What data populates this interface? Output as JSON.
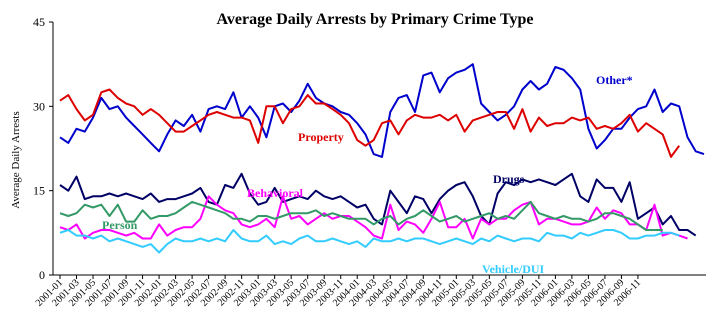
{
  "chart_data": {
    "type": "line",
    "title": "Average Daily Arrests by Primary Crime Type",
    "ylabel": "Average Daily Arrests",
    "xlabel": "",
    "ylim": [
      0,
      45
    ],
    "yticks": [
      "0",
      "15",
      "30",
      "45"
    ],
    "grid": false,
    "xtick_labels": [
      "2001-01",
      "2001-03",
      "2001-05",
      "2001-07",
      "2001-09",
      "2001-11",
      "2002-01",
      "2002-03",
      "2002-05",
      "2002-07",
      "2002-09",
      "2002-11",
      "2003-01",
      "2003-03",
      "2003-05",
      "2003-07",
      "2003-09",
      "2003-11",
      "2004-01",
      "2004-03",
      "2004-05",
      "2004-07",
      "2004-09",
      "2004-11",
      "2005-01",
      "2005-03",
      "2005-05",
      "2005-07",
      "2005-09",
      "2005-11",
      "2006-01",
      "2006-03",
      "2006-05",
      "2006-07",
      "2006-09",
      "2006-11"
    ],
    "series": [
      {
        "name": "Other*",
        "color": "#0000cc",
        "values": [
          24.5,
          23.5,
          26,
          25.5,
          28,
          31.5,
          29.5,
          30,
          28,
          26.5,
          25,
          23.5,
          22,
          25,
          27.5,
          26.5,
          28.5,
          25.5,
          29.5,
          30,
          29.5,
          32.5,
          28,
          30,
          28,
          24.5,
          30,
          30.5,
          29,
          31,
          34,
          31.5,
          30.5,
          30,
          29,
          28.5,
          27,
          25,
          21.5,
          21,
          29,
          31.5,
          32,
          29,
          35.5,
          36,
          32.5,
          35,
          36,
          36.5,
          37.5,
          30.5,
          29,
          27.5,
          28.5,
          30,
          33,
          34.5,
          33,
          34,
          37,
          36.5,
          35,
          33,
          26,
          22.5,
          24,
          26,
          26,
          28,
          29.5,
          30,
          33,
          29,
          30.5,
          30,
          24.5,
          22,
          21.5
        ]
      },
      {
        "name": "Property",
        "color": "#dd0000",
        "values": [
          31,
          32,
          29.5,
          27.5,
          28.5,
          32.5,
          33,
          31.5,
          30.5,
          30,
          28.5,
          29.5,
          28.5,
          27,
          25.5,
          25.5,
          26.5,
          27.5,
          28.5,
          29,
          28.5,
          28,
          28,
          27.5,
          23.5,
          30,
          30,
          27,
          29.5,
          30,
          32,
          30.5,
          30.5,
          29.5,
          28.5,
          27,
          24,
          23,
          24,
          27,
          27.5,
          25,
          27.5,
          28.5,
          28,
          28,
          28.5,
          27.5,
          28.5,
          25.5,
          27.5,
          28,
          28.5,
          29,
          29,
          26,
          29.5,
          25.5,
          28,
          26.5,
          27,
          27,
          28,
          27.5,
          28,
          26,
          26.5,
          26,
          27,
          28.5,
          25.5,
          27,
          26,
          25,
          21,
          23
        ]
      },
      {
        "name": "Drugs",
        "color": "#000066",
        "values": [
          16,
          15,
          17.5,
          13.5,
          14,
          14,
          14.5,
          14,
          14.5,
          14,
          13.5,
          14.5,
          13,
          13.5,
          13.5,
          14,
          14.5,
          15.5,
          13,
          12.5,
          16,
          15.5,
          18,
          14.5,
          12.5,
          13,
          15.5,
          13,
          13.5,
          14,
          13.5,
          15,
          14,
          13.5,
          14,
          13,
          12,
          12.5,
          10,
          9,
          15,
          13,
          11,
          14,
          13.5,
          11,
          13.5,
          15,
          16,
          16.5,
          14,
          10.5,
          9,
          14.5,
          16.5,
          16,
          17,
          16.5,
          17,
          16.5,
          16,
          17,
          18,
          14,
          13,
          17,
          15.5,
          15.5,
          13,
          16.5,
          10,
          11,
          12,
          9,
          10.5,
          8,
          8,
          7
        ]
      },
      {
        "name": "Behavioral",
        "color": "#ff00ff",
        "values": [
          8.5,
          8,
          9,
          6.5,
          7.5,
          8,
          8,
          7.5,
          7,
          7.5,
          6.5,
          6.5,
          9,
          7,
          8,
          8.5,
          8.5,
          10,
          14,
          12.5,
          11.5,
          11,
          9,
          8.5,
          9,
          10,
          8.5,
          14,
          10,
          10.5,
          9,
          10,
          11,
          10,
          10.5,
          10.5,
          9.5,
          8.5,
          7,
          6.5,
          12.5,
          8,
          9.5,
          9,
          7.5,
          10,
          13,
          8.5,
          8.5,
          10,
          6.5,
          10,
          9,
          10,
          10,
          11.5,
          12.5,
          13,
          9,
          10,
          10,
          9.5,
          9,
          9,
          9.5,
          12,
          10,
          11.5,
          11,
          9,
          9,
          8,
          12.5,
          7,
          7.5,
          7,
          6.5
        ]
      },
      {
        "name": "Person",
        "color": "#339966",
        "values": [
          11,
          10.5,
          11,
          12.5,
          12,
          12.5,
          10.5,
          12.5,
          9.5,
          9.5,
          11.5,
          10,
          10.5,
          10.5,
          11,
          12,
          13,
          12.5,
          12,
          11.5,
          11,
          10,
          10,
          9.5,
          10.5,
          10.5,
          10,
          10.5,
          11,
          11,
          11,
          11.5,
          10.5,
          11,
          10.5,
          10,
          10,
          10,
          9,
          10,
          10.5,
          9,
          10,
          10.5,
          11.5,
          10.5,
          9.5,
          10,
          10.5,
          9.5,
          10,
          10.5,
          11,
          10,
          10.5,
          10,
          11.5,
          13,
          11,
          10.5,
          10,
          10.5,
          10,
          10,
          9.5,
          10,
          11,
          11,
          10.5,
          10,
          9,
          8,
          8,
          8
        ]
      },
      {
        "name": "Vehicle/DUI",
        "color": "#33ccff",
        "values": [
          7.5,
          8,
          7,
          7,
          6.5,
          7,
          6,
          6.5,
          6,
          5.5,
          5,
          5.5,
          4,
          5.5,
          6.5,
          6,
          6,
          6.5,
          6,
          6.5,
          6,
          8,
          6.5,
          6,
          6,
          7,
          5.5,
          6,
          5.5,
          6.5,
          7,
          6,
          6,
          6.5,
          6,
          5.5,
          6,
          5,
          6.5,
          6,
          6,
          6.5,
          6,
          6.5,
          6.5,
          6,
          5.5,
          6,
          6.5,
          6,
          5.5,
          6.5,
          6,
          7,
          6.5,
          6,
          6.5,
          6.5,
          6,
          7.5,
          7,
          7,
          6.5,
          7.5,
          7,
          7.5,
          8,
          8,
          7.5,
          6.5,
          6.5,
          7,
          7,
          7.5,
          7.5,
          7
        ]
      }
    ],
    "series_label_colors": {
      "Other*": "#0000cc",
      "Property": "#dd0000",
      "Drugs": "#000066",
      "Behavioral": "#ff00ff",
      "Person": "#339966",
      "Vehicle/DUI": "#33ccff"
    }
  }
}
